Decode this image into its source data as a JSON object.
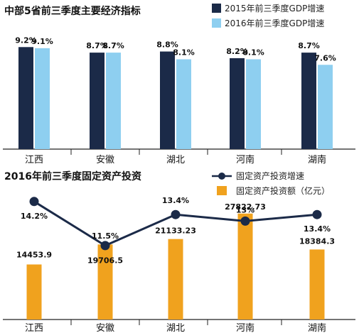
{
  "chart_data": [
    {
      "type": "bar",
      "title": "中部5省前三季度主要经济指标",
      "categories": [
        "江西",
        "安徽",
        "湖北",
        "河南",
        "湖南"
      ],
      "series": [
        {
          "name": "2015年前三季度GDP增速",
          "values": [
            9.2,
            8.7,
            8.8,
            8.2,
            8.7
          ],
          "labels": [
            "9.2%",
            "8.7%",
            "8.8%",
            "8.2%",
            "8.7%"
          ]
        },
        {
          "name": "2016年前三季度GDP增速",
          "values": [
            9.1,
            8.7,
            8.1,
            8.1,
            7.6
          ],
          "labels": [
            "9.1%",
            "8.7%",
            "8.1%",
            "8.1%",
            "7.6%"
          ]
        }
      ],
      "ylim": [
        0,
        10.5
      ],
      "legend": "top-right",
      "grid": false,
      "colors": [
        "#1b2a48",
        "#8ecff0"
      ]
    },
    {
      "type": "bar",
      "title": "2016年前三季度固定资产投资",
      "categories": [
        "江西",
        "安徽",
        "湖北",
        "河南",
        "湖南"
      ],
      "line_series": {
        "name": "固定资产投资增速",
        "values": [
          14.2,
          11.5,
          13.4,
          13,
          13.4
        ],
        "labels": [
          "14.2%",
          "11.5%",
          "13.4%",
          "13%",
          "13.4%"
        ],
        "ylim": [
          8.8,
          14.8
        ]
      },
      "bar_series": {
        "name": "固定资产投资额（亿元）",
        "values": [
          14453.9,
          19706.5,
          21133.23,
          27822.73,
          18384.3
        ],
        "labels": [
          "14453.9",
          "19706.5",
          "21133.23",
          "27822.73",
          "18384.3"
        ],
        "ylim": [
          0,
          33000
        ]
      },
      "legend": "top-right",
      "grid": false,
      "colors": [
        "#1b2a48",
        "#f0a21e"
      ]
    }
  ]
}
